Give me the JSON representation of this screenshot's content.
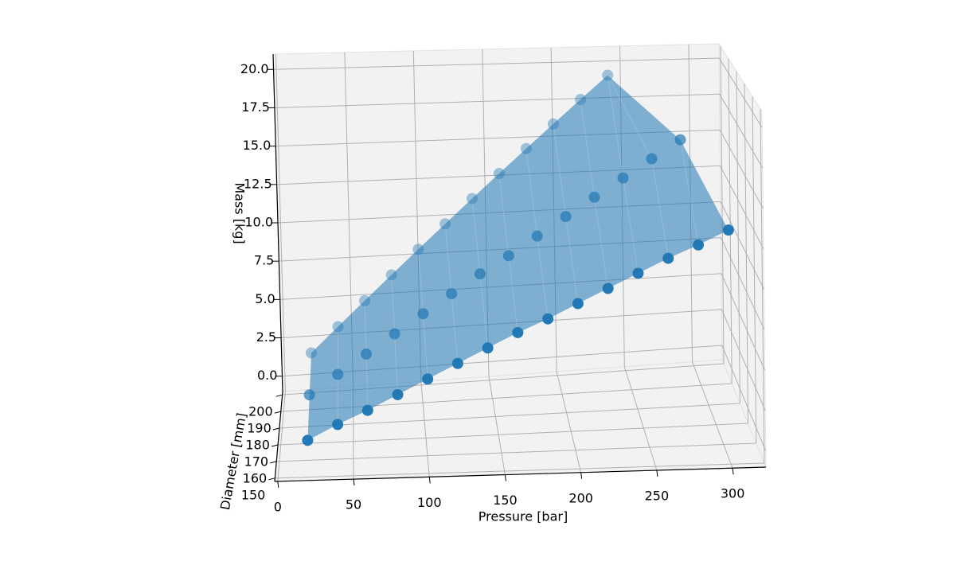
{
  "chart_data": {
    "type": "scatter3d",
    "xlabel": "Pressure [bar]",
    "ylabel": "Diameter [mm]",
    "zlabel": "Mass [kg]",
    "x": [
      20,
      40,
      60,
      80,
      100,
      120,
      140,
      160,
      180,
      200,
      220,
      240,
      260,
      280,
      300,
      20,
      40,
      60,
      80,
      100,
      120,
      140,
      160,
      180,
      200,
      220,
      240,
      260,
      280,
      20,
      40,
      60,
      80,
      100,
      120,
      140,
      160,
      180,
      200,
      220,
      240
    ],
    "y": [
      150,
      150,
      150,
      150,
      150,
      150,
      150,
      150,
      150,
      150,
      150,
      150,
      150,
      150,
      150,
      175,
      175,
      175,
      175,
      175,
      175,
      175,
      175,
      175,
      175,
      175,
      175,
      175,
      175,
      200,
      200,
      200,
      200,
      200,
      200,
      200,
      200,
      200,
      200,
      200,
      200
    ],
    "z": [
      1.2,
      2.1,
      2.9,
      3.8,
      4.7,
      5.6,
      6.5,
      7.4,
      8.2,
      9.1,
      10.0,
      10.9,
      11.8,
      12.6,
      13.5,
      1.5,
      2.7,
      3.9,
      5.1,
      6.3,
      7.5,
      8.7,
      9.8,
      11.0,
      12.2,
      13.4,
      14.6,
      15.8,
      17.0,
      1.6,
      3.2,
      4.8,
      6.4,
      8.0,
      9.6,
      11.2,
      12.8,
      14.4,
      16.0,
      17.6,
      19.2
    ],
    "color": "#1f77b4",
    "xlim": [
      -2,
      322
    ],
    "ylim": [
      148,
      202
    ],
    "zlim": [
      -1,
      21
    ],
    "xticks": [
      0,
      50,
      100,
      150,
      200,
      250,
      300
    ],
    "yticks": [
      150,
      160,
      170,
      180,
      190,
      200
    ],
    "zticks": [
      {
        "value": 0,
        "label": "0.0"
      },
      {
        "value": 2.5,
        "label": "2.5"
      },
      {
        "value": 5,
        "label": "5.0"
      },
      {
        "value": 7.5,
        "label": "7.5"
      },
      {
        "value": 10,
        "label": "10.0"
      },
      {
        "value": 12.5,
        "label": "12.5"
      },
      {
        "value": 15,
        "label": "15.0"
      },
      {
        "value": 17.5,
        "label": "17.5"
      },
      {
        "value": 20,
        "label": "20.0"
      }
    ],
    "grid": true
  }
}
